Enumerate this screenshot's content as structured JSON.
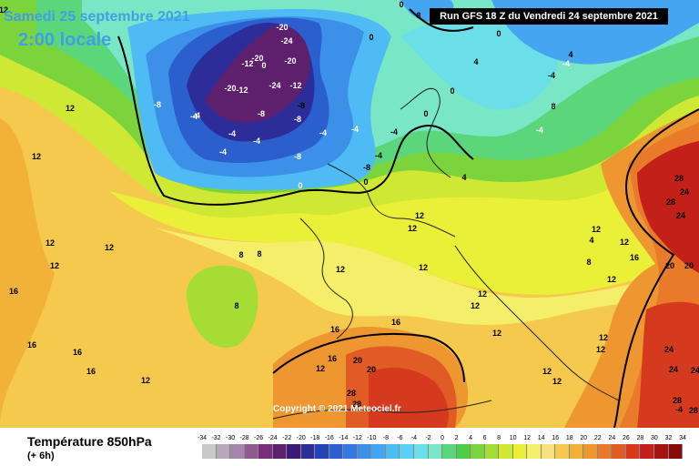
{
  "header": {
    "date": "Samedi 25 septembre 2021",
    "time": "2:00 locale",
    "run": "Run GFS 18 Z du Vendredi 24 septembre 2021"
  },
  "footer": {
    "copyright": "Copyright © 2021 Meteociel.fr",
    "title": "Température 850hPa",
    "subtitle": "(+ 6h)"
  },
  "legend": {
    "ticks": [
      "-34",
      "-32",
      "-30",
      "-28",
      "-26",
      "-24",
      "-22",
      "-20",
      "-18",
      "-16",
      "-14",
      "-12",
      "-10",
      "-8",
      "-6",
      "-4",
      "-2",
      "0",
      "2",
      "4",
      "6",
      "8",
      "10",
      "12",
      "14",
      "16",
      "18",
      "20",
      "22",
      "24",
      "26",
      "28",
      "30",
      "32",
      "34"
    ],
    "colors": [
      "#c9c9c9",
      "#b5a9b9",
      "#a585a9",
      "#8f5a8f",
      "#7a2d7a",
      "#5e1f6d",
      "#3b1a78",
      "#2d2d9a",
      "#2443b5",
      "#2b5fce",
      "#3479dd",
      "#3d90e8",
      "#45a5f0",
      "#4ebbf5",
      "#5ad0f7",
      "#6adfe8",
      "#79e6c6",
      "#5bd67a",
      "#4fcc4a",
      "#7bd43b",
      "#a6dd35",
      "#cfe833",
      "#eaf038",
      "#f5ee68",
      "#f7e17a",
      "#f5c94d",
      "#f2b23a",
      "#ee9630",
      "#e87a2a",
      "#e15c24",
      "#d63a1e",
      "#c3201a",
      "#a51313",
      "#860c0c"
    ]
  },
  "map": {
    "labels": [
      {
        "t": "12",
        "c": "#000"
      },
      {
        "t": "-4",
        "c": "#fff"
      },
      {
        "t": "-8",
        "c": "#fff"
      },
      {
        "t": "-12",
        "c": "#fff"
      },
      {
        "t": "-20",
        "c": "#fff"
      },
      {
        "t": "-24",
        "c": "#fff"
      },
      {
        "t": "-20",
        "c": "#fff"
      },
      {
        "t": "-20",
        "c": "#fff"
      },
      {
        "t": "-24",
        "c": "#fff"
      },
      {
        "t": "-20",
        "c": "#fff"
      },
      {
        "t": "-12",
        "c": "#fff"
      },
      {
        "t": "-12",
        "c": "#fff"
      },
      {
        "t": "-8",
        "c": "#fff"
      },
      {
        "t": "-8",
        "c": "#fff"
      },
      {
        "t": "-4",
        "c": "#fff"
      },
      {
        "t": "-4",
        "c": "#fff"
      },
      {
        "t": "-4",
        "c": "#fff"
      },
      {
        "t": "-4",
        "c": "#fff"
      },
      {
        "t": "-8",
        "c": "#fff"
      },
      {
        "t": "-4",
        "c": "#fff"
      },
      {
        "t": "-4",
        "c": "#fff"
      },
      {
        "t": "0",
        "c": "#fff"
      },
      {
        "t": "0",
        "c": "#fff"
      },
      {
        "t": "0",
        "c": "#000"
      },
      {
        "t": "0",
        "c": "#000"
      },
      {
        "t": "-4",
        "c": "#fff"
      },
      {
        "t": "-4",
        "c": "#fff"
      },
      {
        "t": "-4",
        "c": "#000"
      },
      {
        "t": "-8",
        "c": "#000"
      },
      {
        "t": "-4",
        "c": "#000"
      },
      {
        "t": "0",
        "c": "#000"
      },
      {
        "t": "0",
        "c": "#000"
      },
      {
        "t": "4",
        "c": "#000"
      },
      {
        "t": "4",
        "c": "#000"
      },
      {
        "t": "8",
        "c": "#000"
      },
      {
        "t": "0",
        "c": "#000"
      },
      {
        "t": "12",
        "c": "#000"
      },
      {
        "t": "12",
        "c": "#000"
      },
      {
        "t": "12",
        "c": "#000"
      },
      {
        "t": "12",
        "c": "#000"
      },
      {
        "t": "12",
        "c": "#000"
      },
      {
        "t": "16",
        "c": "#000"
      },
      {
        "t": "16",
        "c": "#000"
      },
      {
        "t": "16",
        "c": "#000"
      },
      {
        "t": "16",
        "c": "#000"
      },
      {
        "t": "12",
        "c": "#000"
      },
      {
        "t": "8",
        "c": "#000"
      },
      {
        "t": "8",
        "c": "#000"
      },
      {
        "t": "8",
        "c": "#000"
      },
      {
        "t": "12",
        "c": "#000"
      },
      {
        "t": "12",
        "c": "#000"
      },
      {
        "t": "12",
        "c": "#000"
      },
      {
        "t": "12",
        "c": "#000"
      },
      {
        "t": "16",
        "c": "#000"
      },
      {
        "t": "16",
        "c": "#000"
      },
      {
        "t": "12",
        "c": "#000"
      },
      {
        "t": "12",
        "c": "#000"
      },
      {
        "t": "20",
        "c": "#000"
      },
      {
        "t": "20",
        "c": "#000"
      },
      {
        "t": "28",
        "c": "#000"
      },
      {
        "t": "28",
        "c": "#000"
      },
      {
        "t": "12",
        "c": "#000"
      },
      {
        "t": "12",
        "c": "#000"
      },
      {
        "t": "12",
        "c": "#000"
      },
      {
        "t": "12",
        "c": "#000"
      },
      {
        "t": "12",
        "c": "#000"
      },
      {
        "t": "12",
        "c": "#000"
      },
      {
        "t": "4",
        "c": "#000"
      },
      {
        "t": "8",
        "c": "#000"
      },
      {
        "t": "12",
        "c": "#000"
      },
      {
        "t": "16",
        "c": "#000"
      },
      {
        "t": "20",
        "c": "#000"
      },
      {
        "t": "20",
        "c": "#000"
      },
      {
        "t": "24",
        "c": "#000"
      },
      {
        "t": "24",
        "c": "#000"
      },
      {
        "t": "28",
        "c": "#000"
      },
      {
        "t": "28",
        "c": "#000"
      },
      {
        "t": "24",
        "c": "#000"
      },
      {
        "t": "24",
        "c": "#000"
      },
      {
        "t": "24",
        "c": "#000"
      },
      {
        "t": "28",
        "c": "#000"
      },
      {
        "t": "28",
        "c": "#000"
      },
      {
        "t": "-4",
        "c": "#000"
      },
      {
        "t": "-4",
        "c": "#000"
      },
      {
        "t": "4",
        "c": "#000"
      },
      {
        "t": "0",
        "c": "#000"
      },
      {
        "t": "8",
        "c": "#000"
      },
      {
        "t": "16",
        "c": "#000"
      },
      {
        "t": "-8",
        "c": "#000"
      },
      {
        "t": "12",
        "c": "#000"
      },
      {
        "t": "12",
        "c": "#000"
      }
    ]
  }
}
